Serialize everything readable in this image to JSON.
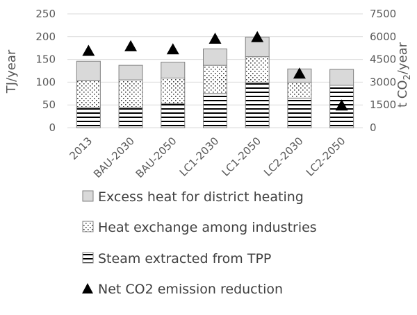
{
  "chart_data": {
    "type": "bar",
    "stacked": true,
    "categories": [
      "2013",
      "BAU-2030",
      "BAU-2050",
      "LC1-2030",
      "LC1-2050",
      "LC2-2030",
      "LC2-2050"
    ],
    "series": [
      {
        "name": "Steam extracted from TPP",
        "values": [
          45,
          45,
          53,
          75,
          100,
          65,
          93
        ],
        "color": "#ffffff",
        "pattern": "horizontal-lines"
      },
      {
        "name": "Heat exchange among industries",
        "values": [
          58,
          60,
          56,
          62,
          56,
          35,
          0
        ],
        "color": "#ffffff",
        "pattern": "dots"
      },
      {
        "name": "Excess heat for district heating",
        "values": [
          43,
          32,
          35,
          36,
          43,
          29,
          35
        ],
        "color": "#d9d9d9",
        "pattern": "solid"
      }
    ],
    "secondary_series": {
      "name": "Net CO2 emission reduction",
      "marker": "triangle",
      "color": "#000000",
      "values": [
        5100,
        5400,
        5200,
        5900,
        6000,
        3600,
        1500
      ]
    },
    "ylabel": "TJ/year",
    "y2label_parts": [
      "t CO",
      "2",
      "/year"
    ],
    "ylim": [
      0,
      250
    ],
    "yticks": [
      "0",
      "50",
      "100",
      "150",
      "200",
      "250"
    ],
    "y2lim": [
      0,
      7500
    ],
    "y2ticks": [
      "0",
      "1500",
      "3000",
      "4500",
      "6000",
      "7500"
    ],
    "grid": true,
    "legend_position": "bottom",
    "legend_order": [
      "Excess heat for district heating",
      "Heat exchange among industries",
      "Steam extracted from TPP",
      "Net CO2 emission reduction"
    ]
  }
}
